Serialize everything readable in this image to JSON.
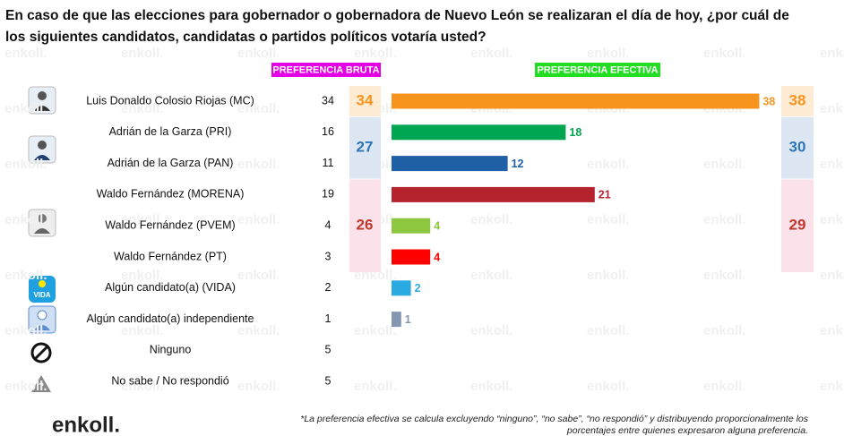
{
  "chart_data": {
    "type": "bar",
    "title": [
      "En caso de que las elecciones para gobernador o gobernadora de Nuevo León se realizaran el día de hoy, ¿por cuál de",
      "los siguientes candidatos, candidatas o partidos políticos votaría usted?"
    ],
    "categories": [
      "Luis Donaldo Colosio Riojas (MC)",
      "Adrián de la Garza (PRI)",
      "Adrián de la Garza (PAN)",
      "Waldo Fernández (MORENA)",
      "Waldo Fernández (PVEM)",
      "Waldo Fernández (PT)",
      "Algún candidato(a) (VIDA)",
      "Algún candidato(a) independiente",
      "Ninguno",
      "No sabe / No respondió"
    ],
    "series": [
      {
        "name": "PREFERENCIA BRUTA",
        "color": "#e400e4",
        "values": [
          34,
          16,
          11,
          19,
          4,
          3,
          2,
          1,
          5,
          5
        ]
      },
      {
        "name": "PREFERENCIA EFECTIVA",
        "color": "#22dd22",
        "values": [
          38,
          18,
          12,
          21,
          4,
          4,
          2,
          1,
          null,
          null
        ],
        "colors": [
          "#f7941d",
          "#00a651",
          "#1f5fa6",
          "#b5232f",
          "#8dc63f",
          "#ff0000",
          "#29abe2",
          "#8497b0",
          null,
          null
        ]
      }
    ],
    "groups": [
      {
        "bruta": 34,
        "efectiva": 38,
        "color": "#f7941d",
        "background": "#fdebd4"
      },
      {
        "bruta": 27,
        "efectiva": 30,
        "color": "#2e75b6",
        "background": "#dde7f3"
      },
      {
        "bruta": 26,
        "efectiva": 29,
        "color": "#c0392b",
        "background": "#fbe1ea"
      }
    ],
    "footnote": [
      "*La preferencia efectiva se calcula excluyendo “ninguno”, “no sabe”, “no respondió” y distribuyendo proporcionalmente los",
      "porcentajes entre quienes expresaron alguna preferencia."
    ],
    "brand": "enkoll."
  }
}
